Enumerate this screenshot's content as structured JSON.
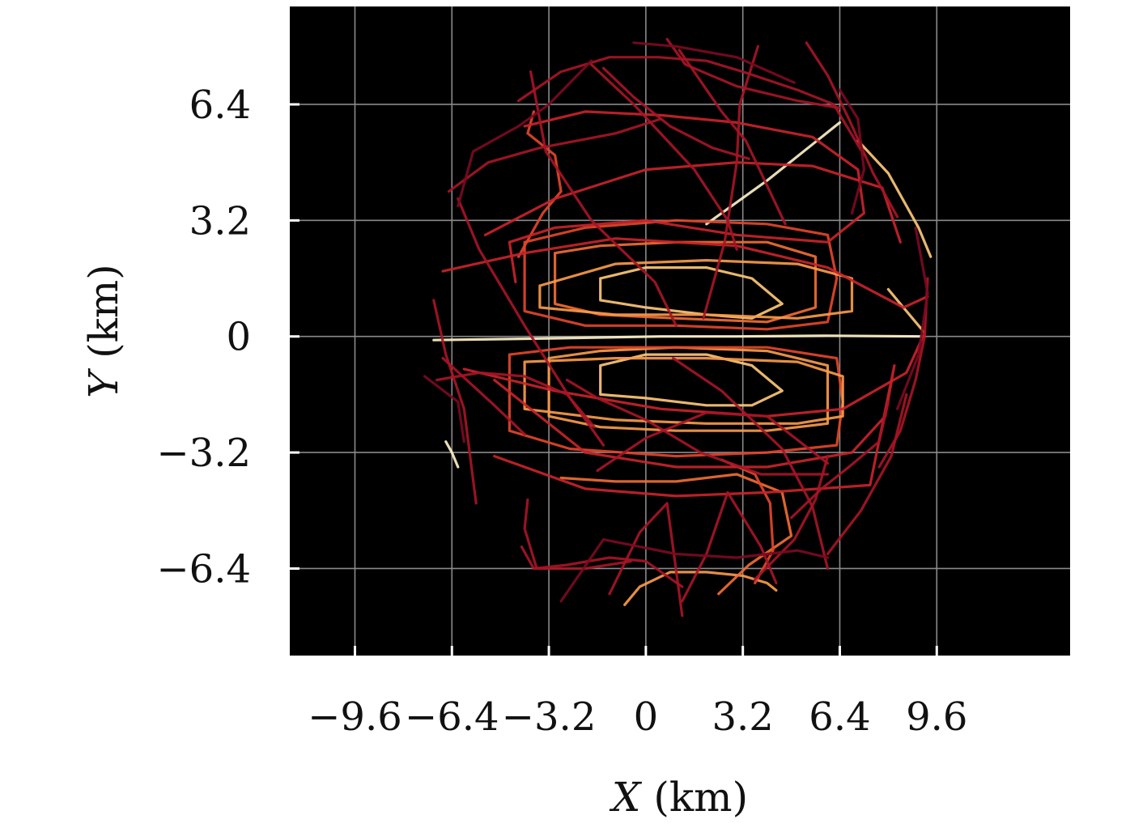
{
  "chart_data": {
    "type": "line",
    "title": "",
    "xlabel": {
      "var": "X",
      "unit": " (km)"
    },
    "ylabel": {
      "var": "Y",
      "unit": " (km)"
    },
    "xlim": [
      -11.75,
      14.0
    ],
    "ylim": [
      -8.8,
      9.1
    ],
    "x_ticks": [
      -9.6,
      -6.4,
      -3.2,
      0,
      3.2,
      6.4,
      9.6
    ],
    "x_tick_labels": [
      "−9.6",
      "−6.4",
      "−3.2",
      "0",
      "3.2",
      "6.4",
      "9.6"
    ],
    "y_ticks": [
      6.4,
      3.2,
      0,
      -3.2,
      -6.4
    ],
    "y_tick_labels": [
      "6.4",
      "3.2",
      "0",
      "−3.2",
      "−6.4"
    ],
    "grid": true,
    "background": "#000000",
    "grid_color": "#8a8a8a",
    "colormap": [
      "#7a0a22",
      "#a51526",
      "#c8232a",
      "#e2452a",
      "#f06d33",
      "#f99a4a",
      "#fcc777",
      "#fdf0c5"
    ],
    "series": [
      {
        "color": "#fdf0c5",
        "x": [
          -7.0,
          -3.0,
          0.5,
          3.0,
          6.0,
          9.2
        ],
        "y": [
          -0.1,
          -0.05,
          0.0,
          0.0,
          0.02,
          0.0
        ]
      },
      {
        "color": "#fdf0c5",
        "x": [
          2.0,
          4.0,
          6.4
        ],
        "y": [
          3.1,
          4.3,
          5.9
        ]
      },
      {
        "color": "#fcc777",
        "x": [
          7.0,
          8.0,
          9.0,
          9.4
        ],
        "y": [
          5.4,
          4.5,
          3.0,
          2.2
        ]
      },
      {
        "color": "#fcc777",
        "x": [
          8.0,
          8.6,
          9.2
        ],
        "y": [
          1.3,
          0.7,
          0.1
        ]
      },
      {
        "color": "#fdf0c5",
        "x": [
          -6.6,
          -6.4,
          -6.2
        ],
        "y": [
          -2.9,
          -3.2,
          -3.6
        ]
      },
      {
        "color": "#f99a4a",
        "x": [
          -0.7,
          -0.2,
          0.8,
          2.0,
          3.2,
          4.0,
          4.3
        ],
        "y": [
          -7.4,
          -6.9,
          -6.5,
          -6.5,
          -6.6,
          -6.8,
          -7.0
        ]
      },
      {
        "color": "#f06d33",
        "x": [
          -3.0,
          -1.5,
          1.0,
          4.0,
          5.6,
          5.6,
          4.0,
          1.0,
          -1.5,
          -3.0,
          -3.0
        ],
        "y": [
          2.3,
          2.5,
          2.6,
          2.6,
          2.2,
          0.8,
          0.4,
          0.5,
          0.6,
          0.9,
          2.3
        ]
      },
      {
        "color": "#f99a4a",
        "x": [
          -3.2,
          -1.5,
          1.0,
          4.0,
          6.0,
          6.0,
          4.0,
          1.0,
          -1.5,
          -3.2,
          -3.2
        ],
        "y": [
          -0.6,
          -0.4,
          -0.3,
          -0.4,
          -0.8,
          -2.4,
          -2.6,
          -2.6,
          -2.5,
          -2.2,
          -0.6
        ]
      },
      {
        "color": "#fcc777",
        "x": [
          -1.5,
          0.0,
          2.0,
          3.5,
          4.5,
          3.5,
          2.0,
          0.0,
          -1.5,
          -1.5
        ],
        "y": [
          1.6,
          1.9,
          1.9,
          1.6,
          0.9,
          0.5,
          0.6,
          0.8,
          1.0,
          1.6
        ]
      },
      {
        "color": "#fcc777",
        "x": [
          -1.5,
          0.0,
          2.0,
          3.5,
          4.5,
          3.5,
          2.0,
          0.0,
          -1.5,
          -1.5
        ],
        "y": [
          -0.8,
          -0.5,
          -0.5,
          -0.8,
          -1.5,
          -1.9,
          -1.9,
          -1.7,
          -1.6,
          -0.8
        ]
      },
      {
        "color": "#e2452a",
        "x": [
          -4.0,
          -2.0,
          1.0,
          4.0,
          6.0,
          6.3,
          6.0,
          4.0,
          1.0,
          -2.0,
          -4.0,
          -4.0
        ],
        "y": [
          2.6,
          3.0,
          3.2,
          3.1,
          2.8,
          1.6,
          0.4,
          0.2,
          0.3,
          0.3,
          0.7,
          2.6
        ]
      },
      {
        "color": "#e2452a",
        "x": [
          -4.5,
          -2.5,
          1.0,
          4.0,
          6.3,
          6.5,
          6.3,
          4.0,
          1.0,
          -2.5,
          -4.5,
          -4.5
        ],
        "y": [
          -0.5,
          -0.3,
          -0.3,
          -0.3,
          -0.6,
          -1.8,
          -3.0,
          -3.2,
          -3.3,
          -3.1,
          -2.6,
          -0.5
        ]
      },
      {
        "color": "#f99a4a",
        "x": [
          -3.5,
          -1.0,
          2.0,
          5.0,
          6.8,
          6.8,
          5.0,
          2.0,
          -1.0,
          -3.5,
          -3.5
        ],
        "y": [
          1.4,
          2.0,
          2.1,
          2.0,
          1.6,
          0.7,
          0.5,
          0.6,
          0.6,
          0.8,
          1.4
        ]
      },
      {
        "color": "#f99a4a",
        "x": [
          -4.0,
          -1.0,
          2.0,
          5.0,
          6.5,
          6.5,
          5.0,
          2.0,
          -1.0,
          -4.0,
          -4.0
        ],
        "y": [
          -0.7,
          -0.6,
          -0.6,
          -0.7,
          -1.1,
          -2.2,
          -2.4,
          -2.4,
          -2.3,
          -2.0,
          -0.7
        ]
      },
      {
        "color": "#f06d33",
        "x": [
          -2.8,
          -1.0,
          1.0,
          3.0,
          4.5,
          4.8,
          3.4,
          2.4
        ],
        "y": [
          -3.9,
          -4.0,
          -4.0,
          -3.8,
          -4.3,
          -5.5,
          -6.3,
          -7.1
        ]
      },
      {
        "color": "#e2452a",
        "x": [
          -4.2,
          -3.4,
          -2.8,
          -3.0,
          -3.9,
          -3.7
        ],
        "y": [
          2.2,
          3.4,
          4.0,
          5.0,
          5.6,
          6.2
        ]
      },
      {
        "color": "#e2452a",
        "x": [
          2.5,
          3.6,
          4.1,
          4.2,
          3.6
        ],
        "y": [
          -3.4,
          -3.8,
          -4.6,
          -5.9,
          -6.8
        ]
      },
      {
        "color": "#c8232a",
        "x": [
          -4.0,
          -2.0,
          0.5,
          3.0,
          5.5,
          7.0,
          7.2,
          6.0,
          3.0,
          0.0,
          -3.0,
          -4.5,
          -4.3
        ],
        "y": [
          5.8,
          6.2,
          6.1,
          5.9,
          5.5,
          4.6,
          3.4,
          2.6,
          2.8,
          3.2,
          3.0,
          2.6,
          1.5
        ]
      },
      {
        "color": "#c8232a",
        "x": [
          -5.3,
          -3.0,
          0.0,
          3.0,
          5.5,
          7.8,
          8.4
        ],
        "y": [
          2.8,
          3.8,
          4.6,
          4.8,
          4.7,
          4.1,
          2.6
        ]
      },
      {
        "color": "#c8232a",
        "x": [
          -5.0,
          -2.0,
          1.0,
          4.0,
          6.8,
          7.9,
          8.2,
          7.4,
          4.0,
          1.0,
          -2.0,
          -5.0
        ],
        "y": [
          -1.2,
          -3.2,
          -3.6,
          -3.6,
          -3.2,
          -2.2,
          -0.8,
          -4.1,
          -4.3,
          -4.4,
          -4.2,
          -3.3
        ]
      },
      {
        "color": "#c8232a",
        "x": [
          -6.0,
          -3.0,
          0.5,
          4.0,
          6.5,
          8.6,
          9.2
        ],
        "y": [
          -0.9,
          -1.5,
          -2.0,
          -2.2,
          -2.0,
          -1.0,
          0.1
        ]
      },
      {
        "color": "#c8232a",
        "x": [
          -6.7,
          -4.0,
          -1.0,
          3.0,
          6.0,
          8.5,
          9.3
        ],
        "y": [
          1.8,
          2.3,
          2.7,
          2.5,
          1.9,
          0.8,
          1.1
        ]
      },
      {
        "color": "#a51526",
        "x": [
          -6.5,
          -5.2,
          -3.5,
          -1.0,
          0.5
        ],
        "y": [
          4.0,
          4.8,
          5.2,
          5.6,
          6.0
        ]
      },
      {
        "color": "#a51526",
        "x": [
          -4.2,
          -2.8,
          -1.2,
          0.4,
          2.0,
          3.2,
          5.0,
          6.2,
          7.2
        ],
        "y": [
          6.5,
          7.3,
          7.7,
          7.7,
          7.6,
          7.3,
          6.8,
          6.4,
          5.0
        ]
      },
      {
        "color": "#a51526",
        "x": [
          0.7,
          1.3,
          3.0,
          5.0,
          6.4
        ],
        "y": [
          8.2,
          7.5,
          6.9,
          6.5,
          6.3
        ]
      },
      {
        "color": "#a51526",
        "x": [
          -1.8,
          -0.4,
          1.6,
          2.7,
          3.0
        ],
        "y": [
          7.5,
          6.4,
          4.6,
          3.2,
          2.4
        ]
      },
      {
        "color": "#a51526",
        "x": [
          1.1,
          2.5,
          3.3,
          4.6
        ],
        "y": [
          7.9,
          6.2,
          5.4,
          3.1
        ]
      },
      {
        "color": "#a51526",
        "x": [
          -3.8,
          -3.3,
          -1.8,
          0.3,
          1.0
        ],
        "y": [
          7.3,
          5.1,
          3.2,
          1.5,
          0.3
        ]
      },
      {
        "color": "#a51526",
        "x": [
          5.3,
          6.0,
          6.7,
          7.5,
          8.3
        ],
        "y": [
          8.1,
          7.2,
          6.0,
          4.5,
          3.3
        ]
      },
      {
        "color": "#a51526",
        "x": [
          -6.2,
          -5.5,
          -4.0,
          -2.5,
          -1.4
        ],
        "y": [
          3.8,
          2.4,
          0.3,
          -1.7,
          -3.0
        ]
      },
      {
        "color": "#a51526",
        "x": [
          -7.0,
          -6.6,
          -6.0,
          -5.6
        ],
        "y": [
          1.0,
          -0.5,
          -2.0,
          -4.6
        ]
      },
      {
        "color": "#a51526",
        "x": [
          -6.9,
          -5.5,
          -4.0,
          -2.6,
          -1.7
        ],
        "y": [
          -1.2,
          -1.0,
          -1.1,
          -1.6,
          -2.5
        ]
      },
      {
        "color": "#a51526",
        "x": [
          -6.7,
          -5.0,
          -4.0
        ],
        "y": [
          -0.6,
          -1.9,
          -2.7
        ]
      },
      {
        "color": "#a51526",
        "x": [
          -4.1,
          -3.7,
          -2.6,
          -1.2,
          0.0,
          1.2
        ],
        "y": [
          -5.8,
          -6.4,
          -6.3,
          -6.1,
          -6.2,
          -6.9
        ]
      },
      {
        "color": "#a51526",
        "x": [
          -3.9,
          -4.0,
          -3.6,
          -2.0,
          -0.5
        ],
        "y": [
          -4.5,
          -5.3,
          -6.4,
          -6.4,
          -6.2
        ]
      },
      {
        "color": "#a51526",
        "x": [
          -1.2,
          -0.2,
          0.7,
          1.2
        ],
        "y": [
          -7.1,
          -5.4,
          -4.6,
          -7.7
        ]
      },
      {
        "color": "#a51526",
        "x": [
          1.2,
          2.0,
          2.7,
          3.8,
          4.3
        ],
        "y": [
          -7.3,
          -6.0,
          -4.3,
          -5.8,
          -6.8
        ]
      },
      {
        "color": "#a51526",
        "x": [
          3.6,
          4.9,
          5.6,
          6.0
        ],
        "y": [
          -6.7,
          -5.6,
          -4.5,
          -3.3
        ]
      },
      {
        "color": "#a51526",
        "x": [
          4.8,
          5.8,
          6.7,
          7.7,
          8.0
        ],
        "y": [
          -5.0,
          -4.2,
          -3.6,
          -2.9,
          -1.8
        ]
      },
      {
        "color": "#a51526",
        "x": [
          6.0,
          7.1,
          8.1,
          8.6
        ],
        "y": [
          -6.0,
          -4.8,
          -3.3,
          -1.6
        ]
      },
      {
        "color": "#a51526",
        "x": [
          7.7,
          8.4,
          8.9,
          9.2,
          9.3
        ],
        "y": [
          -3.6,
          -2.6,
          -1.2,
          0.0,
          1.6
        ]
      },
      {
        "color": "#a51526",
        "x": [
          -1.6,
          0.0,
          2.0,
          4.0,
          6.0
        ],
        "y": [
          -3.7,
          -2.8,
          -2.1,
          -2.2,
          -3.5
        ]
      },
      {
        "color": "#a51526",
        "x": [
          0.9,
          2.5,
          4.5,
          5.5,
          6.0
        ],
        "y": [
          -0.6,
          -1.5,
          -3.1,
          -4.7,
          -6.4
        ]
      },
      {
        "color": "#a51526",
        "x": [
          -2.6,
          -1.6,
          0.0,
          1.8,
          3.8,
          6.0
        ],
        "y": [
          -1.2,
          -1.7,
          -2.3,
          -3.2,
          -3.8,
          -3.8
        ]
      },
      {
        "color": "#a51526",
        "x": [
          3.7,
          3.1,
          3.0,
          2.6,
          1.9
        ],
        "y": [
          8.0,
          6.4,
          4.8,
          2.6,
          0.5
        ]
      },
      {
        "color": "#a51526",
        "x": [
          -1.4,
          -0.4,
          0.8,
          2.2,
          3.4
        ],
        "y": [
          7.4,
          6.6,
          5.8,
          5.2,
          4.9
        ]
      },
      {
        "color": "#7a0a22",
        "x": [
          -7.3,
          -6.2,
          -6.0
        ],
        "y": [
          -1.1,
          -1.8,
          -2.9
        ]
      },
      {
        "color": "#7a0a22",
        "x": [
          -6.2,
          -5.7,
          -4.2,
          -3.2,
          -1.8
        ],
        "y": [
          3.6,
          5.1,
          5.8,
          6.4,
          7.6
        ]
      },
      {
        "color": "#7a0a22",
        "x": [
          -2.8,
          -1.4,
          1.0,
          3.0,
          5.0,
          6.0
        ],
        "y": [
          -7.3,
          -5.6,
          -6.0,
          -6.1,
          -5.9,
          -6.1
        ]
      },
      {
        "color": "#7a0a22",
        "x": [
          -0.4,
          1.0,
          3.0,
          4.9
        ],
        "y": [
          8.1,
          8.0,
          7.7,
          7.0
        ]
      },
      {
        "color": "#7a0a22",
        "x": [
          6.4,
          7.0,
          7.2,
          6.8
        ],
        "y": [
          6.8,
          6.0,
          4.6,
          3.4
        ]
      },
      {
        "color": "#7a0a22",
        "x": [
          8.9,
          9.3,
          9.0,
          8.3
        ],
        "y": [
          3.0,
          1.2,
          -0.5,
          -2.0
        ]
      }
    ]
  }
}
